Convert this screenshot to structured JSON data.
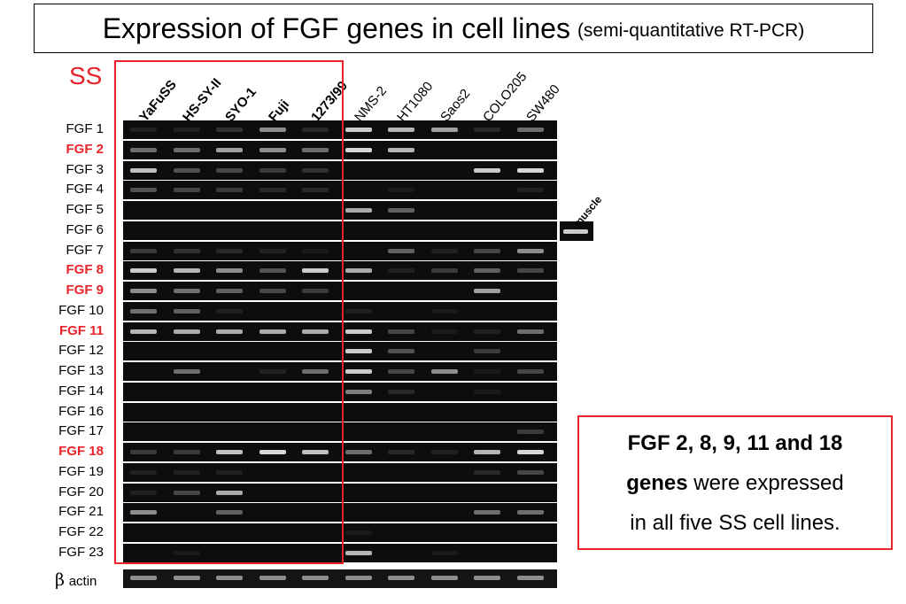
{
  "title": {
    "main": "Expression of FGF genes in cell lines",
    "sub": "(semi-quantitative RT-PCR)"
  },
  "ss_group_label": "SS",
  "lanes": [
    {
      "name": "YaFuSS",
      "ss": true
    },
    {
      "name": "HS-SY-II",
      "ss": true
    },
    {
      "name": "SYO-1",
      "ss": true
    },
    {
      "name": "Fuji",
      "ss": true
    },
    {
      "name": "1273/99",
      "ss": true
    },
    {
      "name": "NMS-2",
      "ss": false
    },
    {
      "name": "HT1080",
      "ss": false
    },
    {
      "name": "Saos2",
      "ss": false
    },
    {
      "name": "COLO205",
      "ss": false
    },
    {
      "name": "SW480",
      "ss": false
    }
  ],
  "genes": [
    {
      "name": "FGF 1",
      "highlight": false,
      "bands": [
        0.15,
        0.15,
        0.25,
        0.6,
        0.2,
        0.85,
        0.75,
        0.65,
        0.2,
        0.5
      ]
    },
    {
      "name": "FGF 2",
      "highlight": true,
      "bands": [
        0.5,
        0.5,
        0.65,
        0.6,
        0.5,
        0.9,
        0.75,
        0,
        0,
        0
      ]
    },
    {
      "name": "FGF 3",
      "highlight": false,
      "bands": [
        0.8,
        0.4,
        0.35,
        0.3,
        0.25,
        0,
        0,
        0,
        0.85,
        0.9
      ]
    },
    {
      "name": "FGF 4",
      "highlight": false,
      "bands": [
        0.4,
        0.35,
        0.3,
        0.2,
        0.2,
        0,
        0.1,
        0,
        0,
        0.15
      ]
    },
    {
      "name": "FGF 5",
      "highlight": false,
      "bands": [
        0,
        0,
        0,
        0,
        0,
        0.7,
        0.45,
        0,
        0,
        0
      ]
    },
    {
      "name": "FGF 6",
      "highlight": false,
      "bands": [
        0,
        0,
        0,
        0,
        0,
        0,
        0,
        0,
        0,
        0
      ]
    },
    {
      "name": "FGF 7",
      "highlight": false,
      "bands": [
        0.3,
        0.25,
        0.2,
        0.15,
        0.1,
        0,
        0.45,
        0.15,
        0.35,
        0.6
      ]
    },
    {
      "name": "FGF 8",
      "highlight": true,
      "bands": [
        0.85,
        0.75,
        0.6,
        0.4,
        0.85,
        0.7,
        0.15,
        0.3,
        0.45,
        0.35
      ]
    },
    {
      "name": "FGF 9",
      "highlight": true,
      "bands": [
        0.6,
        0.5,
        0.45,
        0.35,
        0.3,
        0,
        0,
        0,
        0.65,
        0
      ]
    },
    {
      "name": "FGF 10",
      "highlight": false,
      "bands": [
        0.5,
        0.45,
        0.15,
        0,
        0,
        0.15,
        0,
        0.1,
        0,
        0
      ]
    },
    {
      "name": "FGF 11",
      "highlight": true,
      "bands": [
        0.75,
        0.7,
        0.7,
        0.7,
        0.7,
        0.85,
        0.35,
        0.1,
        0.15,
        0.5
      ]
    },
    {
      "name": "FGF 12",
      "highlight": false,
      "bands": [
        0,
        0,
        0,
        0,
        0,
        0.85,
        0.4,
        0,
        0.3,
        0
      ]
    },
    {
      "name": "FGF 13",
      "highlight": false,
      "bands": [
        0,
        0.5,
        0,
        0.15,
        0.5,
        0.85,
        0.35,
        0.6,
        0.1,
        0.35
      ]
    },
    {
      "name": "FGF 14",
      "highlight": false,
      "bands": [
        0,
        0,
        0,
        0,
        0,
        0.55,
        0.2,
        0,
        0.1,
        0
      ]
    },
    {
      "name": "FGF 16",
      "highlight": false,
      "bands": [
        0,
        0,
        0,
        0,
        0,
        0,
        0,
        0,
        0,
        0
      ]
    },
    {
      "name": "FGF 17",
      "highlight": false,
      "bands": [
        0,
        0,
        0,
        0,
        0,
        0,
        0,
        0,
        0,
        0.3
      ]
    },
    {
      "name": "FGF 18",
      "highlight": true,
      "bands": [
        0.3,
        0.3,
        0.8,
        0.9,
        0.8,
        0.5,
        0.2,
        0.15,
        0.75,
        0.9
      ]
    },
    {
      "name": "FGF 19",
      "highlight": false,
      "bands": [
        0.15,
        0.15,
        0.15,
        0,
        0,
        0,
        0,
        0,
        0.2,
        0.35
      ]
    },
    {
      "name": "FGF 20",
      "highlight": false,
      "bands": [
        0.15,
        0.35,
        0.7,
        0,
        0,
        0,
        0,
        0,
        0,
        0
      ]
    },
    {
      "name": "FGF 21",
      "highlight": false,
      "bands": [
        0.6,
        0,
        0.45,
        0,
        0,
        0,
        0,
        0,
        0.5,
        0.5
      ]
    },
    {
      "name": "FGF 22",
      "highlight": false,
      "bands": [
        0,
        0,
        0,
        0,
        0,
        0.1,
        0,
        0,
        0,
        0
      ]
    },
    {
      "name": "FGF 23",
      "highlight": false,
      "bands": [
        0,
        0.1,
        0,
        0,
        0,
        0.75,
        0,
        0.1,
        0,
        0
      ]
    }
  ],
  "control": {
    "sym": "β",
    "label": "actin",
    "bands": [
      0.6,
      0.6,
      0.6,
      0.6,
      0.6,
      0.6,
      0.6,
      0.6,
      0.6,
      0.6
    ]
  },
  "muscle": {
    "label": "muscle",
    "row": "FGF 6",
    "band": 0.85
  },
  "conclusion": {
    "line1": "FGF 2, 8, 9, 11 and 18",
    "line2_bold": "genes",
    "line2_rest": " were expressed",
    "line3": "in all five SS cell lines."
  },
  "colors": {
    "red": "#e8232a",
    "gel": "#0d0d0d",
    "band": "#e6e6e6"
  }
}
